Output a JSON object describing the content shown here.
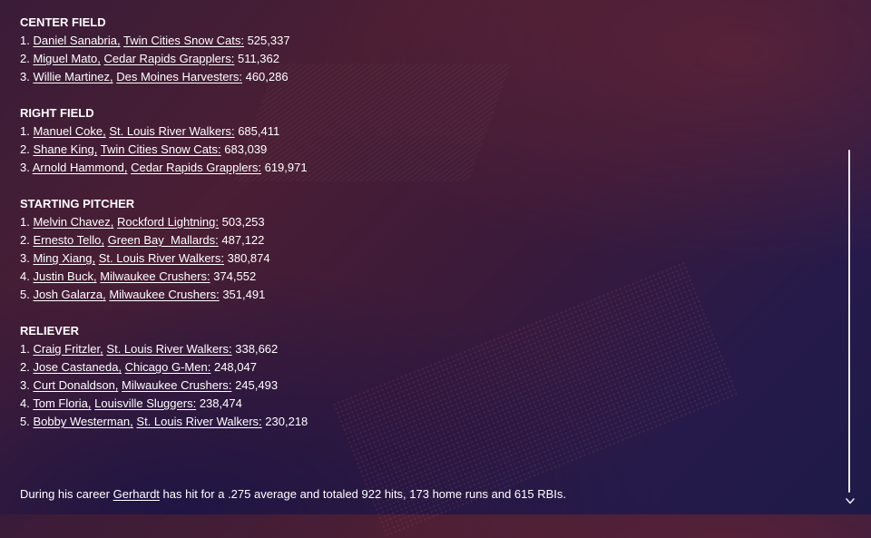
{
  "sections": [
    {
      "title": "CENTER FIELD",
      "items": [
        {
          "rank": "1.",
          "player": "Daniel Sanabria",
          "team": "Twin Cities Snow Cats",
          "value": "525,337"
        },
        {
          "rank": "2.",
          "player": "Miguel Mato",
          "team": "Cedar Rapids Grapplers",
          "value": "511,362"
        },
        {
          "rank": "3.",
          "player": "Willie Martinez",
          "team": "Des Moines Harvesters",
          "value": "460,286"
        }
      ]
    },
    {
      "title": "RIGHT FIELD",
      "items": [
        {
          "rank": "1.",
          "player": "Manuel Coke",
          "team": "St. Louis River Walkers",
          "value": "685,411"
        },
        {
          "rank": "2.",
          "player": "Shane King",
          "team": "Twin Cities Snow Cats",
          "value": "683,039"
        },
        {
          "rank": "3.",
          "player": "Arnold Hammond",
          "team": "Cedar Rapids Grapplers",
          "value": "619,971"
        }
      ]
    },
    {
      "title": "STARTING PITCHER",
      "items": [
        {
          "rank": "1.",
          "player": "Melvin Chavez",
          "team": "Rockford Lightning",
          "value": "503,253"
        },
        {
          "rank": "2.",
          "player": "Ernesto Tello",
          "team": "Green Bay  Mallards",
          "value": "487,122"
        },
        {
          "rank": "3.",
          "player": "Ming Xiang",
          "team": "St. Louis River Walkers",
          "value": "380,874"
        },
        {
          "rank": "4.",
          "player": "Justin Buck",
          "team": "Milwaukee Crushers",
          "value": "374,552"
        },
        {
          "rank": "5.",
          "player": "Josh Galarza",
          "team": "Milwaukee Crushers",
          "value": "351,491"
        }
      ]
    },
    {
      "title": "RELIEVER",
      "items": [
        {
          "rank": "1.",
          "player": "Craig Fritzler",
          "team": "St. Louis River Walkers",
          "value": "338,662"
        },
        {
          "rank": "2.",
          "player": "Jose Castaneda",
          "team": "Chicago G-Men",
          "value": "248,047"
        },
        {
          "rank": "3.",
          "player": "Curt Donaldson",
          "team": "Milwaukee Crushers",
          "value": "245,493"
        },
        {
          "rank": "4.",
          "player": "Tom Floria",
          "team": "Louisville Sluggers",
          "value": "238,474"
        },
        {
          "rank": "5.",
          "player": "Bobby Westerman",
          "team": "St. Louis River Walkers",
          "value": "230,218"
        }
      ]
    }
  ],
  "footer": {
    "prefix": "During his career ",
    "player_link": "Gerhardt",
    "suffix": " has hit for a .275 average and totaled 922 hits, 173 home runs and 615 RBIs."
  },
  "icons": {
    "scroll_down": "chevron-down-icon"
  },
  "colors": {
    "text": "#ffffff",
    "scrollbar": "#e9e6ee"
  }
}
